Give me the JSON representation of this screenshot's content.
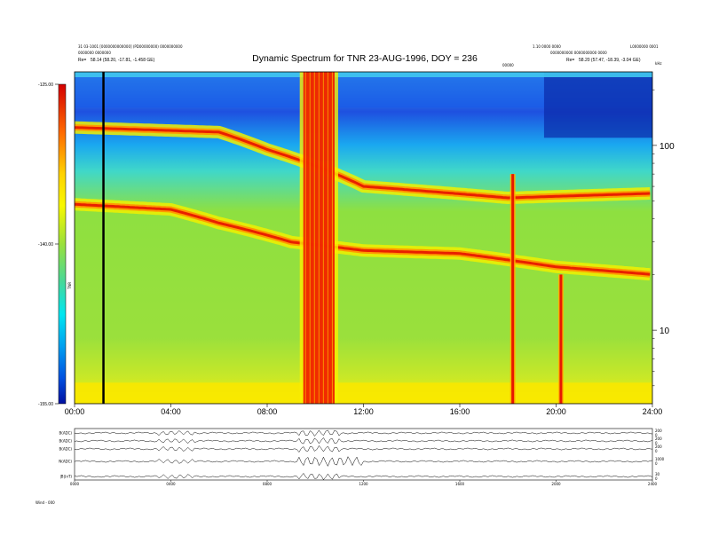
{
  "header": {
    "left_line_1": "31 03-1001 [0000000000000] (PD00000000) 0000000000",
    "left_line_2": "0000000 0000000",
    "left_re_label": "Re=",
    "left_re_value": "58.14 (58.20, -17.81, -1.458 GE)",
    "right_line_1": "1.10 0000 0000",
    "right_line_2": "0000000000 0000000000 0000",
    "right_re_label": "Re=",
    "right_re_value": "58.20 (57.47, -18.39, -3.04 GE)",
    "far_right_1": "L0000000 0001",
    "far_right_2": "kHz",
    "center_marker": "00000"
  },
  "colorbar": {
    "label": "TNR",
    "ticks": [
      "-125.00",
      "-140.00",
      "-155.00"
    ],
    "colors": [
      "#d40000",
      "#ff6a00",
      "#ffd200",
      "#f8f800",
      "#9ae03c",
      "#46d89a",
      "#00e6f0",
      "#00a0f0",
      "#0050e0",
      "#0010a0"
    ]
  },
  "chart_data": {
    "type": "heatmap",
    "title": "Dynamic Spectrum for TNR 23-AUG-1996, DOY = 236",
    "x_ticks": [
      "00:00",
      "04:00",
      "08:00",
      "12:00",
      "16:00",
      "20:00",
      "24:00"
    ],
    "x_range_hours": [
      0,
      24
    ],
    "y_scale": "log",
    "y_unit": "kHz",
    "y_ticks": [
      100,
      10
    ],
    "y_range_khz": [
      4,
      250
    ],
    "color_range_db": [
      -155,
      -125
    ],
    "cursor_time_hours": 1.2,
    "features": [
      {
        "name": "upper plasma band",
        "time_hours": [
          0,
          6,
          8,
          12,
          18,
          24
        ],
        "freq_khz": [
          125,
          118,
          95,
          60,
          52,
          55
        ]
      },
      {
        "name": "lower plasma band",
        "time_hours": [
          0,
          4,
          6,
          9,
          12,
          16,
          20,
          24
        ],
        "freq_khz": [
          48,
          45,
          38,
          30,
          27,
          26,
          22,
          20
        ]
      },
      {
        "name": "broadband burst",
        "time_hours": [
          9.5,
          10.8
        ],
        "freq_khz": [
          4,
          250
        ]
      },
      {
        "name": "narrow burst",
        "time_hours": [
          18.2
        ],
        "freq_khz": [
          4,
          70
        ]
      },
      {
        "name": "narrow burst",
        "time_hours": [
          20.2
        ],
        "freq_khz": [
          4,
          20
        ]
      }
    ]
  },
  "bottom_panels": {
    "labels": [
      "B(ADC)",
      "B(ADC)",
      "B(ADC)",
      "N(ADC)",
      "|B|(nT)"
    ],
    "right_values": [
      [
        "200",
        "0"
      ],
      [
        "200",
        "0"
      ],
      [
        "200",
        "0"
      ],
      [
        "1000",
        "0"
      ],
      [
        "30",
        "0"
      ]
    ],
    "x_ticks": [
      "0000",
      "0400",
      "0800",
      "1200",
      "1600",
      "2000",
      "2400"
    ],
    "footer": "Wind - 000"
  }
}
